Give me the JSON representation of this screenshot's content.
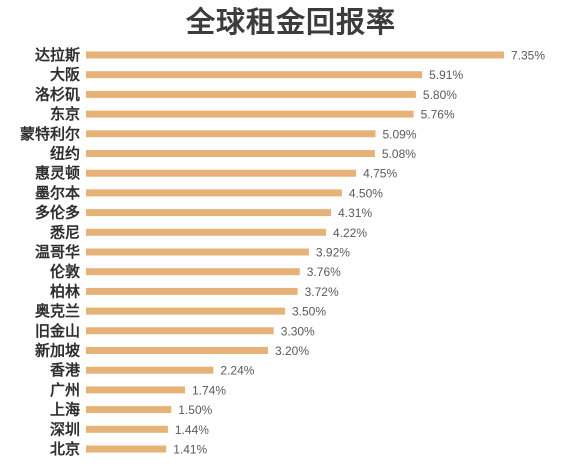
{
  "chart_data": {
    "type": "bar",
    "orientation": "horizontal",
    "title": "全球租金回报率",
    "xlabel": "",
    "ylabel": "",
    "xlim": [
      0,
      7.35
    ],
    "grid": false,
    "legend": "none",
    "bar_color": "#e7b277",
    "label_color": "#2f2f2f",
    "value_color": "#5a5a5a",
    "categories": [
      "达拉斯",
      "大阪",
      "洛杉矶",
      "东京",
      "蒙特利尔",
      "纽约",
      "惠灵顿",
      "墨尔本",
      "多伦多",
      "悉尼",
      "温哥华",
      "伦敦",
      "柏林",
      "奥克兰",
      "旧金山",
      "新加坡",
      "香港",
      "广州",
      "上海",
      "深圳",
      "北京"
    ],
    "values": [
      7.35,
      5.91,
      5.8,
      5.76,
      5.09,
      5.08,
      4.75,
      4.5,
      4.31,
      4.22,
      3.92,
      3.76,
      3.72,
      3.5,
      3.3,
      3.2,
      2.24,
      1.74,
      1.5,
      1.44,
      1.41
    ],
    "value_labels": [
      "7.35%",
      "5.91%",
      "5.80%",
      "5.76%",
      "5.09%",
      "5.08%",
      "4.75%",
      "4.50%",
      "4.31%",
      "4.22%",
      "3.92%",
      "3.76%",
      "3.72%",
      "3.50%",
      "3.30%",
      "3.20%",
      "2.24%",
      "1.74%",
      "1.50%",
      "1.44%",
      "1.41%"
    ]
  }
}
